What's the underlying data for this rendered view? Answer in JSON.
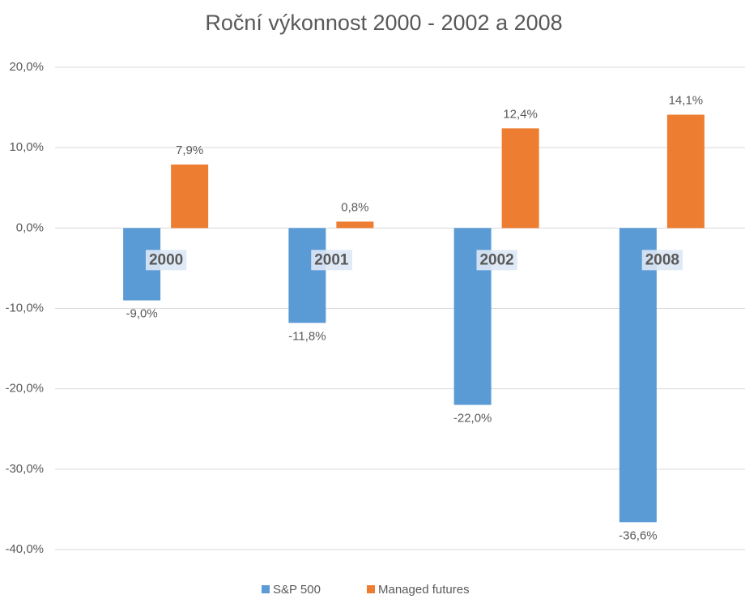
{
  "chart_data": {
    "type": "bar",
    "title": "Roční výkonnost 2000 - 2002 a 2008",
    "categories": [
      "2000",
      "2001",
      "2002",
      "2008"
    ],
    "series": [
      {
        "name": "S&P 500",
        "color": "#5b9bd5",
        "values": [
          -9.0,
          -11.8,
          -22.0,
          -36.6
        ],
        "value_labels": [
          "-9,0%",
          "-11,8%",
          "-22,0%",
          "-36,6%"
        ]
      },
      {
        "name": "Managed futures",
        "color": "#ed7d31",
        "values": [
          7.9,
          0.8,
          12.4,
          14.1
        ],
        "value_labels": [
          "7,9%",
          "0,8%",
          "12,4%",
          "14,1%"
        ]
      }
    ],
    "ylim": [
      -40,
      20
    ],
    "yticks": [
      {
        "value": -40,
        "label": "-40,0%"
      },
      {
        "value": -30,
        "label": "-30,0%"
      },
      {
        "value": -20,
        "label": "-20,0%"
      },
      {
        "value": -10,
        "label": "-10,0%"
      },
      {
        "value": 0,
        "label": "0,0%"
      },
      {
        "value": 10,
        "label": "10,0%"
      },
      {
        "value": 20,
        "label": "20,0%"
      }
    ],
    "grid": true,
    "legend": "bottom"
  }
}
